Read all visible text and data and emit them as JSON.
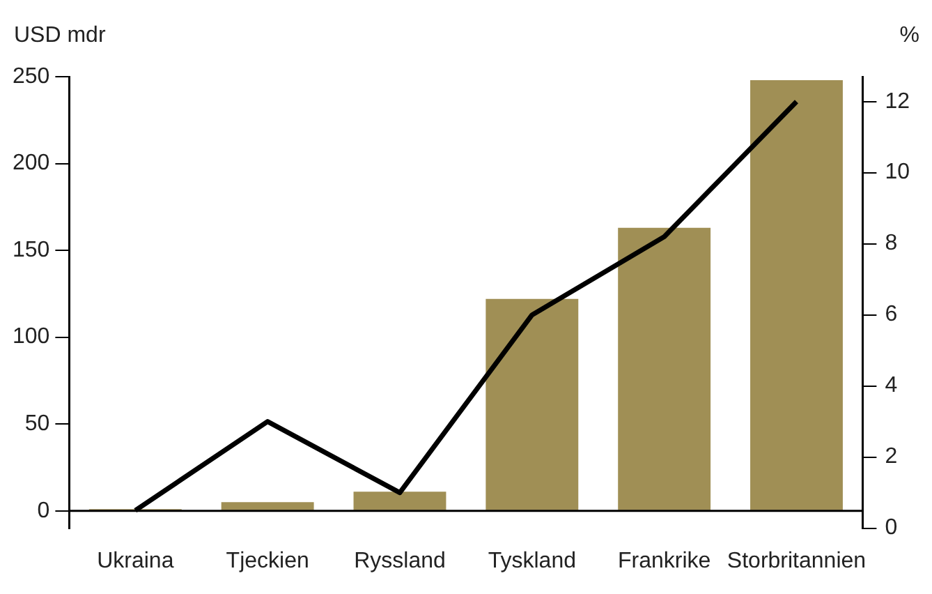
{
  "chart_data": {
    "type": "bar",
    "ylabel": "USD mdr",
    "y2label": "%",
    "categories": [
      "Ukraina",
      "Tjeckien",
      "Ryssland",
      "Tyskland",
      "Frankrike",
      "Storbritannien"
    ],
    "series": [
      {
        "color": "#a08f55",
        "values": [
          1,
          5,
          11,
          122,
          163,
          248
        ]
      },
      {
        "type": "line",
        "axis": "y2",
        "color": "#000000",
        "values": [
          0.5,
          3,
          1,
          6,
          8.2,
          12
        ]
      }
    ],
    "ylim": [
      -10,
      250
    ],
    "yticks": [
      0,
      50,
      100,
      150,
      200,
      250
    ],
    "y2lim": [
      0,
      12.7
    ],
    "y2ticks": [
      0,
      2,
      4,
      6,
      8,
      10,
      12
    ],
    "grid": false,
    "legend": false,
    "marker": "none",
    "line_style": "solid"
  }
}
